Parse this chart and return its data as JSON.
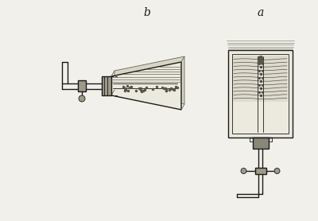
{
  "bg_color": "#f2f0eb",
  "line_color": "#1a1a1a",
  "label_b": "b",
  "label_a": "a",
  "label_fontsize": 10,
  "figsize": [
    4.0,
    2.78
  ],
  "dpi": 100
}
